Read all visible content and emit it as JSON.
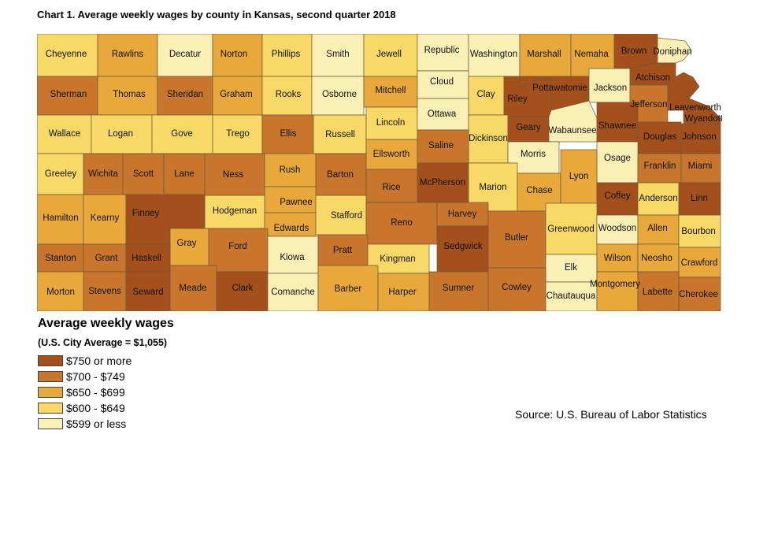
{
  "title": "Chart 1. Average weekly wages by county in Kansas, second quarter 2018",
  "legend": {
    "title": "Average weekly wages",
    "subtitle": "(U.S. City Average = $1,055)",
    "bins": [
      {
        "key": "c5",
        "label": "$750 or more",
        "color": "#A4501C"
      },
      {
        "key": "c4",
        "label": "$700 - $749",
        "color": "#C8762D"
      },
      {
        "key": "c3",
        "label": "$650 - $699",
        "color": "#E8A83C"
      },
      {
        "key": "c2",
        "label": "$600 - $649",
        "color": "#F8D866"
      },
      {
        "key": "c1",
        "label": "$599 or less",
        "color": "#FAF0B6"
      }
    ]
  },
  "source": "Source: U.S. Bureau of Labor Statistics",
  "counties": [
    {
      "name": "Cheyenne",
      "bin": "c2"
    },
    {
      "name": "Rawlins",
      "bin": "c3"
    },
    {
      "name": "Decatur",
      "bin": "c1"
    },
    {
      "name": "Norton",
      "bin": "c3"
    },
    {
      "name": "Phillips",
      "bin": "c2"
    },
    {
      "name": "Smith",
      "bin": "c1"
    },
    {
      "name": "Jewell",
      "bin": "c2"
    },
    {
      "name": "Republic",
      "bin": "c1"
    },
    {
      "name": "Washington",
      "bin": "c1"
    },
    {
      "name": "Marshall",
      "bin": "c3"
    },
    {
      "name": "Nemaha",
      "bin": "c3"
    },
    {
      "name": "Brown",
      "bin": "c5"
    },
    {
      "name": "Doniphan",
      "bin": "c1"
    },
    {
      "name": "Sherman",
      "bin": "c4"
    },
    {
      "name": "Thomas",
      "bin": "c3"
    },
    {
      "name": "Sheridan",
      "bin": "c4"
    },
    {
      "name": "Graham",
      "bin": "c3"
    },
    {
      "name": "Rooks",
      "bin": "c2"
    },
    {
      "name": "Osborne",
      "bin": "c1"
    },
    {
      "name": "Mitchell",
      "bin": "c3"
    },
    {
      "name": "Cloud",
      "bin": "c1"
    },
    {
      "name": "Clay",
      "bin": "c2"
    },
    {
      "name": "Riley",
      "bin": "c5"
    },
    {
      "name": "Pottawatomie",
      "bin": "c5"
    },
    {
      "name": "Jackson",
      "bin": "c1"
    },
    {
      "name": "Atchison",
      "bin": "c5"
    },
    {
      "name": "Jefferson",
      "bin": "c4"
    },
    {
      "name": "Leavenworth",
      "bin": "c5"
    },
    {
      "name": "Wyandotte",
      "bin": "c5"
    },
    {
      "name": "Wallace",
      "bin": "c2"
    },
    {
      "name": "Logan",
      "bin": "c2"
    },
    {
      "name": "Gove",
      "bin": "c2"
    },
    {
      "name": "Trego",
      "bin": "c2"
    },
    {
      "name": "Ellis",
      "bin": "c4"
    },
    {
      "name": "Russell",
      "bin": "c2"
    },
    {
      "name": "Lincoln",
      "bin": "c2"
    },
    {
      "name": "Ottawa",
      "bin": "c1"
    },
    {
      "name": "Dickinson",
      "bin": "c2"
    },
    {
      "name": "Geary",
      "bin": "c5"
    },
    {
      "name": "Wabaunsee",
      "bin": "c1"
    },
    {
      "name": "Shawnee",
      "bin": "c5"
    },
    {
      "name": "Douglas",
      "bin": "c5"
    },
    {
      "name": "Johnson",
      "bin": "c5"
    },
    {
      "name": "Ellsworth",
      "bin": "c3"
    },
    {
      "name": "Saline",
      "bin": "c4"
    },
    {
      "name": "Morris",
      "bin": "c1"
    },
    {
      "name": "Osage",
      "bin": "c1"
    },
    {
      "name": "Greeley",
      "bin": "c2"
    },
    {
      "name": "Wichita",
      "bin": "c4"
    },
    {
      "name": "Scott",
      "bin": "c4"
    },
    {
      "name": "Lane",
      "bin": "c4"
    },
    {
      "name": "Ness",
      "bin": "c4"
    },
    {
      "name": "Rush",
      "bin": "c3"
    },
    {
      "name": "Barton",
      "bin": "c4"
    },
    {
      "name": "Rice",
      "bin": "c4"
    },
    {
      "name": "McPherson",
      "bin": "c5"
    },
    {
      "name": "Marion",
      "bin": "c2"
    },
    {
      "name": "Chase",
      "bin": "c3"
    },
    {
      "name": "Lyon",
      "bin": "c3"
    },
    {
      "name": "Franklin",
      "bin": "c4"
    },
    {
      "name": "Miami",
      "bin": "c4"
    },
    {
      "name": "Coffey",
      "bin": "c5"
    },
    {
      "name": "Anderson",
      "bin": "c2"
    },
    {
      "name": "Linn",
      "bin": "c5"
    },
    {
      "name": "Pawnee",
      "bin": "c3"
    },
    {
      "name": "Hodgeman",
      "bin": "c2"
    },
    {
      "name": "Hamilton",
      "bin": "c3"
    },
    {
      "name": "Kearny",
      "bin": "c3"
    },
    {
      "name": "Finney",
      "bin": "c5"
    },
    {
      "name": "Edwards",
      "bin": "c3"
    },
    {
      "name": "Stafford",
      "bin": "c2"
    },
    {
      "name": "Reno",
      "bin": "c4"
    },
    {
      "name": "Harvey",
      "bin": "c4"
    },
    {
      "name": "Butler",
      "bin": "c4"
    },
    {
      "name": "Greenwood",
      "bin": "c2"
    },
    {
      "name": "Woodson",
      "bin": "c1"
    },
    {
      "name": "Allen",
      "bin": "c3"
    },
    {
      "name": "Bourbon",
      "bin": "c2"
    },
    {
      "name": "Gray",
      "bin": "c3"
    },
    {
      "name": "Ford",
      "bin": "c4"
    },
    {
      "name": "Kiowa",
      "bin": "c1"
    },
    {
      "name": "Pratt",
      "bin": "c4"
    },
    {
      "name": "Kingman",
      "bin": "c2"
    },
    {
      "name": "Sedgwick",
      "bin": "c5"
    },
    {
      "name": "Elk",
      "bin": "c1"
    },
    {
      "name": "Wilson",
      "bin": "c3"
    },
    {
      "name": "Neosho",
      "bin": "c3"
    },
    {
      "name": "Crawford",
      "bin": "c3"
    },
    {
      "name": "Stanton",
      "bin": "c4"
    },
    {
      "name": "Grant",
      "bin": "c4"
    },
    {
      "name": "Haskell",
      "bin": "c5"
    },
    {
      "name": "Morton",
      "bin": "c3"
    },
    {
      "name": "Stevens",
      "bin": "c4"
    },
    {
      "name": "Seward",
      "bin": "c5"
    },
    {
      "name": "Meade",
      "bin": "c4"
    },
    {
      "name": "Clark",
      "bin": "c5"
    },
    {
      "name": "Comanche",
      "bin": "c1"
    },
    {
      "name": "Barber",
      "bin": "c3"
    },
    {
      "name": "Harper",
      "bin": "c3"
    },
    {
      "name": "Sumner",
      "bin": "c4"
    },
    {
      "name": "Cowley",
      "bin": "c4"
    },
    {
      "name": "Chautauqua",
      "bin": "c1"
    },
    {
      "name": "Montgomery",
      "bin": "c3"
    },
    {
      "name": "Labette",
      "bin": "c4"
    },
    {
      "name": "Cherokee",
      "bin": "c4"
    }
  ]
}
